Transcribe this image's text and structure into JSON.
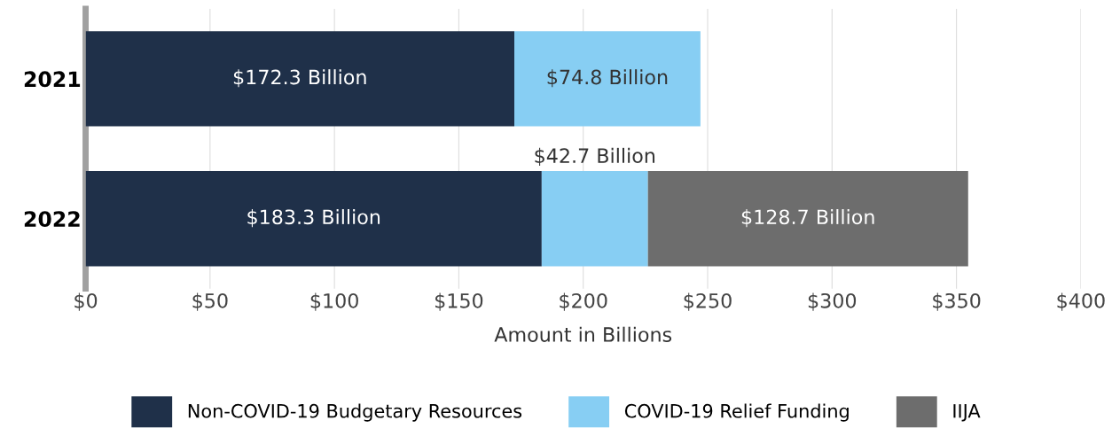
{
  "chart_data": {
    "type": "bar",
    "orientation": "horizontal",
    "stacked": true,
    "xlabel": "Amount in Billions",
    "categories": [
      "2021",
      "2022"
    ],
    "series": [
      {
        "name": "Non-COVID-19 Budgetary Resources",
        "color": "#1f3049",
        "values": [
          172.3,
          183.3
        ],
        "value_labels": [
          "$172.3 Billion",
          "$183.3 Billion"
        ]
      },
      {
        "name": "COVID-19 Relief Funding",
        "color": "#87cef3",
        "values": [
          74.8,
          42.7
        ],
        "value_labels": [
          "$74.8 Billion",
          "$42.7 Billion"
        ]
      },
      {
        "name": "IIJA",
        "color": "#6d6d6d",
        "values": [
          null,
          128.7
        ],
        "value_labels": [
          null,
          "$128.7 Billion"
        ]
      }
    ],
    "xlim": [
      0,
      400
    ],
    "xticks": [
      {
        "value": 0,
        "label": "$0"
      },
      {
        "value": 50,
        "label": "$50"
      },
      {
        "value": 100,
        "label": "$100"
      },
      {
        "value": 150,
        "label": "$150"
      },
      {
        "value": 200,
        "label": "$200"
      },
      {
        "value": 250,
        "label": "$250"
      },
      {
        "value": 300,
        "label": "$300"
      },
      {
        "value": 350,
        "label": "$350"
      },
      {
        "value": 400,
        "label": "$400"
      }
    ],
    "grid": "x",
    "legend": "bottom"
  }
}
